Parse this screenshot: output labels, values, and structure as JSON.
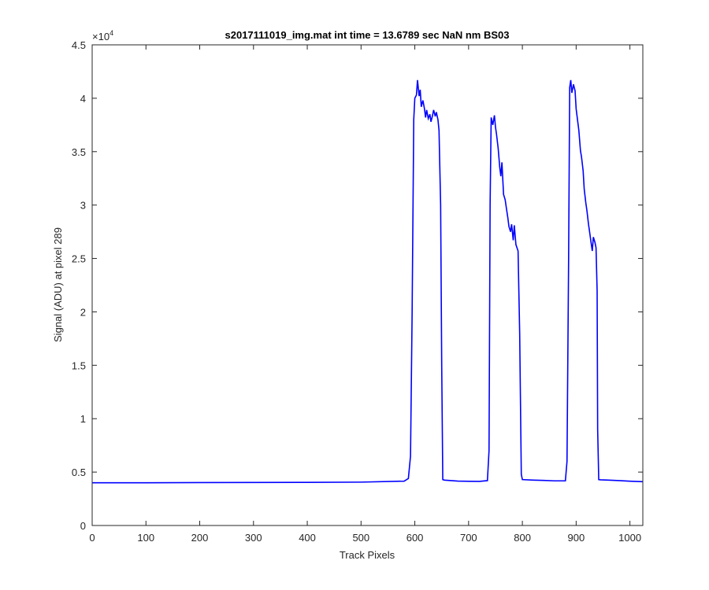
{
  "chart_data": {
    "type": "line",
    "title": "s2017111019_img.mat int time = 13.6789 sec  NaN nm BS03",
    "xlabel": "Track Pixels",
    "ylabel": "Signal (ADU) at pixel 289",
    "y_exponent_label": "×10",
    "y_exponent_power": "4",
    "xlim": [
      0,
      1024
    ],
    "ylim": [
      0,
      45000
    ],
    "x_ticks": [
      0,
      100,
      200,
      300,
      400,
      500,
      600,
      700,
      800,
      900,
      1000
    ],
    "x_tick_labels": [
      "0",
      "100",
      "200",
      "300",
      "400",
      "500",
      "600",
      "700",
      "800",
      "900",
      "1000"
    ],
    "y_ticks": [
      0,
      5000,
      10000,
      15000,
      20000,
      25000,
      30000,
      35000,
      40000,
      45000
    ],
    "y_tick_labels": [
      "0",
      "0.5",
      "1",
      "1.5",
      "2",
      "2.5",
      "3",
      "3.5",
      "4",
      "4.5"
    ],
    "grid": false,
    "line_color": "#0000ff",
    "series": [
      {
        "x": [
          0,
          100,
          200,
          300,
          400,
          500,
          580,
          588,
          592,
          595,
          598,
          600,
          603,
          605,
          608,
          610,
          612,
          615,
          618,
          620,
          622,
          625,
          628,
          630,
          633,
          635,
          638,
          640,
          643,
          645,
          648,
          650,
          652,
          655,
          660,
          680,
          700,
          720,
          735,
          738,
          740,
          742,
          745,
          748,
          750,
          752,
          755,
          758,
          760,
          762,
          765,
          768,
          770,
          773,
          775,
          778,
          780,
          783,
          785,
          788,
          790,
          792,
          795,
          798,
          800,
          820,
          840,
          860,
          880,
          883,
          886,
          888,
          890,
          892,
          895,
          898,
          900,
          903,
          905,
          908,
          910,
          913,
          915,
          918,
          920,
          923,
          925,
          928,
          930,
          932,
          935,
          937,
          939,
          940,
          942,
          945,
          960,
          980,
          1000,
          1024
        ],
        "y": [
          4000,
          4000,
          4020,
          4030,
          4040,
          4060,
          4150,
          4400,
          6500,
          20000,
          38000,
          40000,
          40300,
          41700,
          40200,
          40800,
          39200,
          39800,
          39000,
          38200,
          38900,
          38100,
          38500,
          37800,
          38400,
          38900,
          38300,
          38700,
          38000,
          37000,
          30000,
          15000,
          4300,
          4250,
          4230,
          4160,
          4140,
          4130,
          4200,
          7000,
          30000,
          38200,
          37500,
          38400,
          37300,
          36600,
          35300,
          33500,
          32700,
          34000,
          31000,
          30500,
          29800,
          28800,
          28000,
          27500,
          28200,
          26700,
          28100,
          26300,
          26000,
          25700,
          18000,
          4800,
          4300,
          4250,
          4220,
          4180,
          4180,
          6000,
          25000,
          41000,
          41700,
          40500,
          41300,
          40700,
          39000,
          37800,
          37000,
          35100,
          34500,
          33200,
          31500,
          30200,
          29500,
          28200,
          27500,
          26400,
          25700,
          27000,
          26500,
          26000,
          22000,
          9000,
          4300,
          4280,
          4250,
          4200,
          4150,
          4100
        ]
      }
    ]
  }
}
